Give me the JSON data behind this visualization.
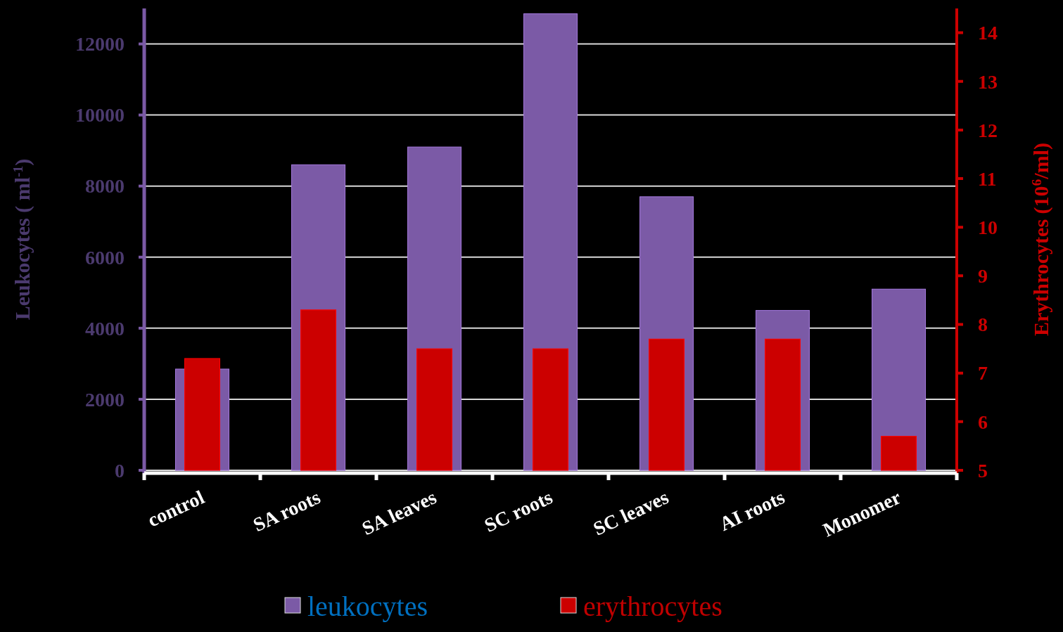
{
  "chart_data": {
    "type": "bar",
    "categories": [
      "control",
      "SA roots",
      "SA leaves",
      "SC roots",
      "SC leaves",
      "AI roots",
      "Monomer"
    ],
    "series": [
      {
        "name": "leukocytes",
        "color": "#7b5aa6",
        "values": [
          2850,
          8600,
          9100,
          12850,
          7700,
          4500,
          5100
        ]
      },
      {
        "name": "erythrocytes",
        "color": "#cc0000",
        "axis": "y2",
        "values": [
          7.3,
          8.3,
          7.5,
          7.5,
          7.7,
          7.7,
          5.7
        ]
      }
    ],
    "ylabel": "Leukocytes ( ml$^{-1}$)",
    "y2label": "Erythrocytes (10$^{6}$/ml)",
    "ylim": [
      0,
      13000
    ],
    "yticks": [
      0,
      2000,
      4000,
      6000,
      8000,
      10000,
      12000
    ],
    "y2lim": [
      5,
      14.5
    ],
    "y2ticks": [
      5,
      6,
      7,
      8,
      9,
      10,
      11,
      12,
      13,
      14
    ],
    "grid": "y",
    "legend": "bottom"
  }
}
